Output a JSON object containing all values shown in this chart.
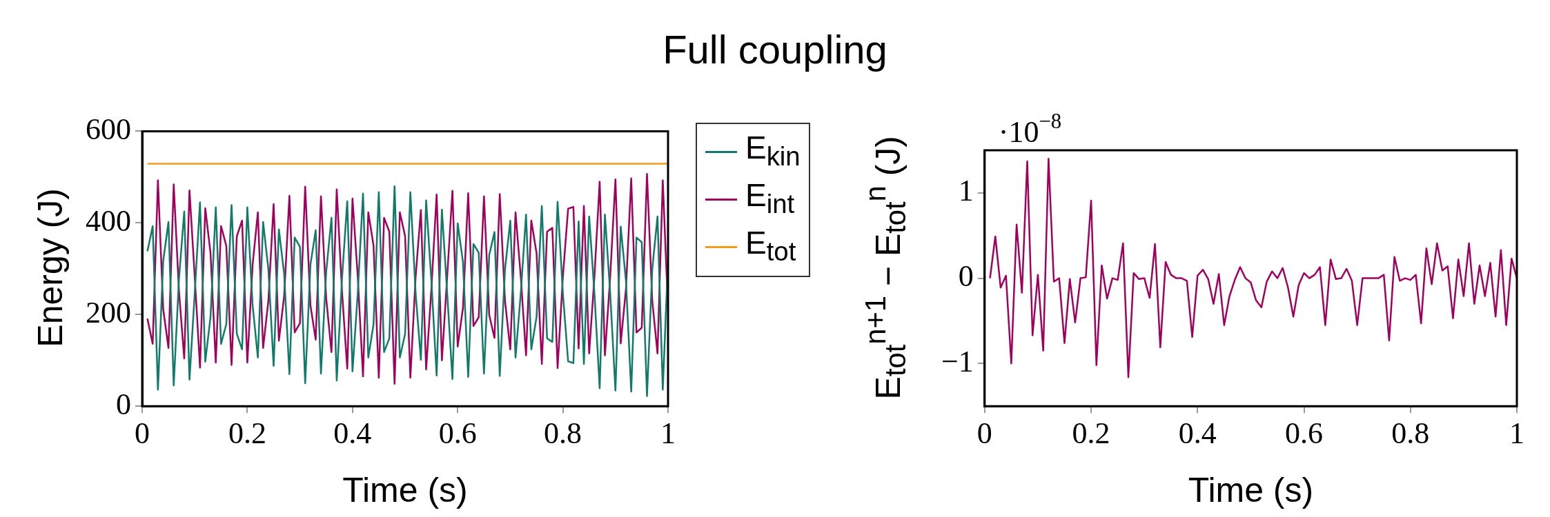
{
  "chart_data": [
    {
      "type": "line",
      "title": "Full coupling",
      "xlabel": "Time (s)",
      "ylabel": "Energy (J)",
      "legend": "right",
      "xlim": [
        0,
        1
      ],
      "xticks": [
        0,
        0.2,
        0.4,
        0.6,
        0.8,
        1
      ],
      "ylim": [
        0,
        600
      ],
      "yticks": [
        0,
        200,
        400,
        600
      ],
      "x": [
        0.01,
        0.02,
        0.03,
        0.04,
        0.05,
        0.06,
        0.07,
        0.08,
        0.09,
        0.1,
        0.11,
        0.12,
        0.13,
        0.14,
        0.15,
        0.16,
        0.17,
        0.18,
        0.19,
        0.2,
        0.21,
        0.22,
        0.23,
        0.24,
        0.25,
        0.26,
        0.27,
        0.28,
        0.29,
        0.3,
        0.31,
        0.32,
        0.33,
        0.34,
        0.35,
        0.36,
        0.37,
        0.38,
        0.39,
        0.4,
        0.41,
        0.42,
        0.43,
        0.44,
        0.45,
        0.46,
        0.47,
        0.48,
        0.49,
        0.5,
        0.51,
        0.52,
        0.53,
        0.54,
        0.55,
        0.56,
        0.57,
        0.58,
        0.59,
        0.6,
        0.61,
        0.62,
        0.63,
        0.64,
        0.65,
        0.66,
        0.67,
        0.68,
        0.69,
        0.7,
        0.71,
        0.72,
        0.73,
        0.74,
        0.75,
        0.76,
        0.77,
        0.78,
        0.79,
        0.8,
        0.81,
        0.82,
        0.83,
        0.84,
        0.85,
        0.86,
        0.87,
        0.88,
        0.89,
        0.9,
        0.91,
        0.92,
        0.93,
        0.94,
        0.95,
        0.96,
        0.97,
        0.98,
        0.99,
        1
      ],
      "series": [
        {
          "name": "E$_{kin}$",
          "color": "#117a6a",
          "values": [
            338,
            393,
            36,
            317,
            402,
            45,
            278,
            425,
            58,
            247,
            445,
            97,
            195,
            434,
            136,
            179,
            439,
            158,
            124,
            434,
            221,
            106,
            402,
            299,
            88,
            386,
            289,
            70,
            368,
            348,
            50,
            309,
            384,
            71,
            294,
            411,
            56,
            278,
            447,
            76,
            247,
            464,
            106,
            179,
            467,
            118,
            148,
            480,
            106,
            158,
            467,
            247,
            101,
            449,
            273,
            67,
            429,
            247,
            59,
            399,
            315,
            64,
            354,
            335,
            71,
            330,
            380,
            66,
            299,
            405,
            106,
            247,
            418,
            124,
            195,
            437,
            148,
            140,
            446,
            247,
            98,
            94,
            403,
            92,
            414,
            247,
            39,
            418,
            247,
            34,
            392,
            273,
            32,
            368,
            358,
            22,
            299,
            414,
            36,
            320
          ]
        },
        {
          "name": "E$_{int}$",
          "color": "#a0005e",
          "values": [
            191,
            136,
            493,
            212,
            127,
            484,
            251,
            104,
            471,
            282,
            84,
            432,
            334,
            95,
            393,
            350,
            90,
            371,
            405,
            95,
            308,
            423,
            127,
            230,
            441,
            143,
            240,
            459,
            161,
            181,
            479,
            220,
            145,
            458,
            235,
            118,
            473,
            251,
            82,
            453,
            282,
            65,
            423,
            350,
            62,
            411,
            381,
            49,
            423,
            371,
            62,
            282,
            428,
            80,
            256,
            462,
            100,
            282,
            470,
            130,
            214,
            465,
            175,
            194,
            458,
            199,
            149,
            463,
            230,
            124,
            423,
            282,
            111,
            405,
            334,
            92,
            381,
            389,
            83,
            282,
            431,
            435,
            126,
            437,
            115,
            282,
            490,
            111,
            282,
            495,
            137,
            256,
            497,
            161,
            171,
            507,
            230,
            115,
            493,
            209
          ]
        },
        {
          "name": "E$_{tot}$",
          "color": "#f29b1f",
          "values": [
            529,
            529,
            529,
            529,
            529,
            529,
            529,
            529,
            529,
            529,
            529,
            529,
            529,
            529,
            529,
            529,
            529,
            529,
            529,
            529,
            529,
            529,
            529,
            529,
            529,
            529,
            529,
            529,
            529,
            529,
            529,
            529,
            529,
            529,
            529,
            529,
            529,
            529,
            529,
            529,
            529,
            529,
            529,
            529,
            529,
            529,
            529,
            529,
            529,
            529,
            529,
            529,
            529,
            529,
            529,
            529,
            529,
            529,
            529,
            529,
            529,
            529,
            529,
            529,
            529,
            529,
            529,
            529,
            529,
            529,
            529,
            529,
            529,
            529,
            529,
            529,
            529,
            529,
            529,
            529,
            529,
            529,
            529,
            529,
            529,
            529,
            529,
            529,
            529,
            529,
            529,
            529,
            529,
            529,
            529,
            529,
            529,
            529,
            529,
            529
          ]
        }
      ]
    },
    {
      "type": "line",
      "xlabel": "Time (s)",
      "ylabel": "E$_{tot}$$^{n+1}$ − E$_{tot}$$^{n}$ (J)",
      "annotations": [
        "·10$^{−8}$"
      ],
      "xlim": [
        0,
        1
      ],
      "xticks": [
        0,
        0.2,
        0.4,
        0.6,
        0.8,
        1
      ],
      "ylim": [
        -1.5,
        1.5
      ],
      "yticks": [
        {
          "value": -1,
          "label": "−1"
        },
        0,
        1
      ],
      "x": [
        0.01,
        0.02,
        0.03,
        0.04,
        0.05,
        0.06,
        0.07,
        0.08,
        0.09,
        0.1,
        0.11,
        0.12,
        0.13,
        0.14,
        0.15,
        0.16,
        0.17,
        0.18,
        0.19,
        0.2,
        0.21,
        0.22,
        0.23,
        0.24,
        0.25,
        0.26,
        0.27,
        0.28,
        0.29,
        0.3,
        0.31,
        0.32,
        0.33,
        0.34,
        0.35,
        0.36,
        0.37,
        0.38,
        0.39,
        0.4,
        0.41,
        0.42,
        0.43,
        0.44,
        0.45,
        0.46,
        0.47,
        0.48,
        0.49,
        0.5,
        0.51,
        0.52,
        0.53,
        0.54,
        0.55,
        0.56,
        0.57,
        0.58,
        0.59,
        0.6,
        0.61,
        0.62,
        0.63,
        0.64,
        0.65,
        0.66,
        0.67,
        0.68,
        0.69,
        0.7,
        0.71,
        0.72,
        0.73,
        0.74,
        0.75,
        0.76,
        0.77,
        0.78,
        0.79,
        0.8,
        0.81,
        0.82,
        0.83,
        0.84,
        0.85,
        0.86,
        0.87,
        0.88,
        0.89,
        0.9,
        0.91,
        0.92,
        0.93,
        0.94,
        0.95,
        0.96,
        0.97,
        0.98,
        0.99,
        1
      ],
      "series": [
        {
          "color": "#a0005e",
          "values": [
            0,
            0.49,
            -0.11,
            0.03,
            -1.0,
            0.63,
            -0.17,
            1.37,
            -0.67,
            0.04,
            -0.85,
            1.4,
            -0.04,
            0,
            -0.76,
            -0.01,
            -0.52,
            0,
            0.01,
            0.91,
            -1.02,
            0.15,
            -0.24,
            0,
            -0.02,
            0.41,
            -1.16,
            0.06,
            -0.01,
            0,
            -0.23,
            0.4,
            -0.81,
            0.19,
            0.04,
            0,
            0,
            -0.03,
            -0.69,
            0.03,
            0.1,
            -0.01,
            -0.3,
            0.05,
            -0.55,
            -0.21,
            -0.02,
            0.13,
            0,
            -0.05,
            -0.26,
            -0.34,
            -0.04,
            0.08,
            0,
            0.12,
            -0.11,
            -0.45,
            -0.08,
            0.06,
            0,
            0.04,
            0.13,
            -0.55,
            0.22,
            -0.01,
            0,
            0.11,
            -0.03,
            -0.55,
            0,
            0,
            0,
            0,
            0.04,
            -0.73,
            0.25,
            -0.03,
            0,
            -0.02,
            0.04,
            -0.53,
            0.35,
            -0.07,
            0.41,
            0.09,
            0.14,
            -0.47,
            0.22,
            -0.21,
            0.41,
            -0.3,
            0.15,
            -0.21,
            0.18,
            -0.45,
            0.33,
            -0.55,
            0.23,
            0
          ]
        }
      ]
    }
  ]
}
